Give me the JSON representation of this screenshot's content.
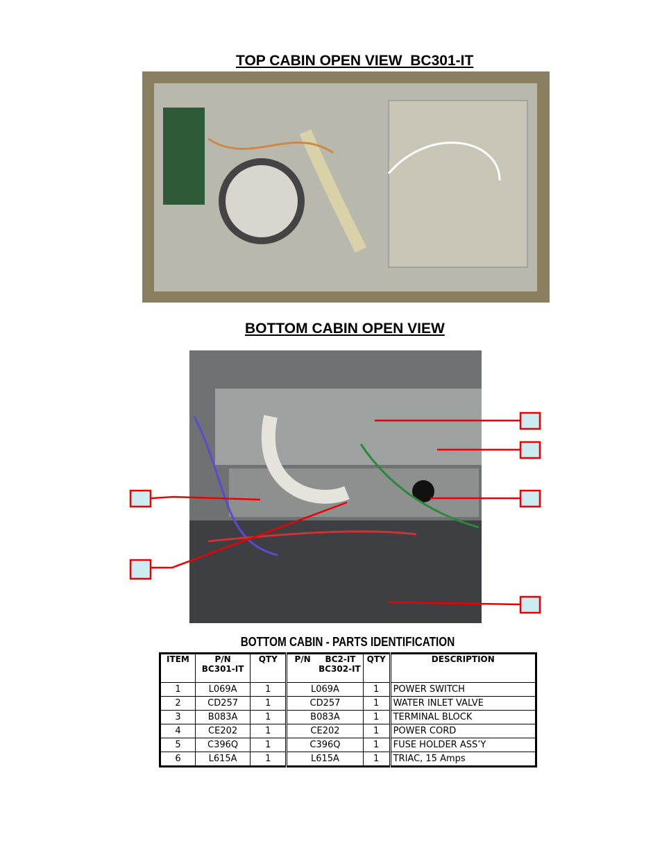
{
  "header": {
    "top_title": "TOP CABIN OPEN VIEW  BC301-IT",
    "bottom_title": "BOTTOM CABIN OPEN VIEW"
  },
  "table": {
    "title": "BOTTOM CABIN - PARTS IDENTIFICATION",
    "headers": [
      [
        "ITEM"
      ],
      [
        "P/N",
        "BC301-IT"
      ],
      [
        "QTY"
      ],
      [
        "P/N     BC2-IT",
        "BC302-IT"
      ],
      [
        "QTY"
      ],
      [
        "DESCRIPTION"
      ]
    ],
    "rows": [
      [
        "1",
        "L069A",
        "1",
        "L069A",
        "1",
        "POWER SWITCH"
      ],
      [
        "2",
        "CD257",
        "1",
        "CD257",
        "1",
        "WATER INLET VALVE"
      ],
      [
        "3",
        "B083A",
        "1",
        "B083A",
        "1",
        "TERMINAL BLOCK"
      ],
      [
        "4",
        "CE202",
        "1",
        "CE202",
        "1",
        "POWER CORD"
      ],
      [
        "5",
        "C396Q",
        "1",
        "C396Q",
        "1",
        "FUSE HOLDER ASS’Y"
      ],
      [
        "6",
        "L615A",
        "1",
        "L615A",
        "1",
        "TRIAC, 15 Amps"
      ]
    ]
  }
}
